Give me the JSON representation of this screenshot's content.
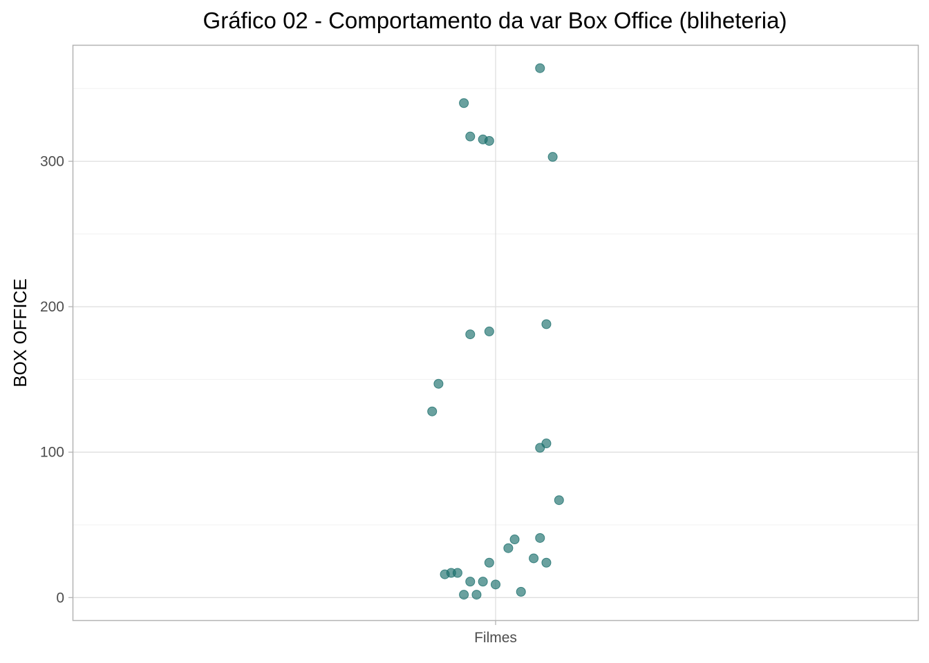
{
  "chart_data": {
    "type": "scatter",
    "title": "Gráfico 02 - Comportamento da var Box Office (bliheteria)",
    "xlabel": "",
    "ylabel": "BOX OFFICE",
    "categories": [
      "Filmes"
    ],
    "ylim": [
      -16,
      380
    ],
    "yticks": [
      0,
      100,
      200,
      300
    ],
    "ytick_labels": [
      "0",
      "100",
      "200",
      "300"
    ],
    "grid": true,
    "legend": "none",
    "point_color": "#1a6e6b",
    "series": [
      {
        "category": "Filmes",
        "points": [
          {
            "jitter": 0.07,
            "y": 364
          },
          {
            "jitter": -0.05,
            "y": 340
          },
          {
            "jitter": -0.04,
            "y": 317
          },
          {
            "jitter": -0.02,
            "y": 315
          },
          {
            "jitter": -0.01,
            "y": 314
          },
          {
            "jitter": 0.09,
            "y": 303
          },
          {
            "jitter": 0.08,
            "y": 188
          },
          {
            "jitter": -0.01,
            "y": 183
          },
          {
            "jitter": -0.04,
            "y": 181
          },
          {
            "jitter": -0.09,
            "y": 147
          },
          {
            "jitter": -0.1,
            "y": 128
          },
          {
            "jitter": 0.08,
            "y": 106
          },
          {
            "jitter": 0.07,
            "y": 103
          },
          {
            "jitter": 0.1,
            "y": 67
          },
          {
            "jitter": 0.07,
            "y": 41
          },
          {
            "jitter": 0.03,
            "y": 40
          },
          {
            "jitter": 0.02,
            "y": 34
          },
          {
            "jitter": 0.06,
            "y": 27
          },
          {
            "jitter": -0.01,
            "y": 24
          },
          {
            "jitter": 0.08,
            "y": 24
          },
          {
            "jitter": -0.07,
            "y": 17
          },
          {
            "jitter": -0.06,
            "y": 17
          },
          {
            "jitter": -0.08,
            "y": 16
          },
          {
            "jitter": -0.04,
            "y": 11
          },
          {
            "jitter": -0.02,
            "y": 11
          },
          {
            "jitter": 0.0,
            "y": 9
          },
          {
            "jitter": 0.04,
            "y": 4
          },
          {
            "jitter": -0.03,
            "y": 2
          },
          {
            "jitter": -0.05,
            "y": 2
          }
        ]
      }
    ]
  }
}
